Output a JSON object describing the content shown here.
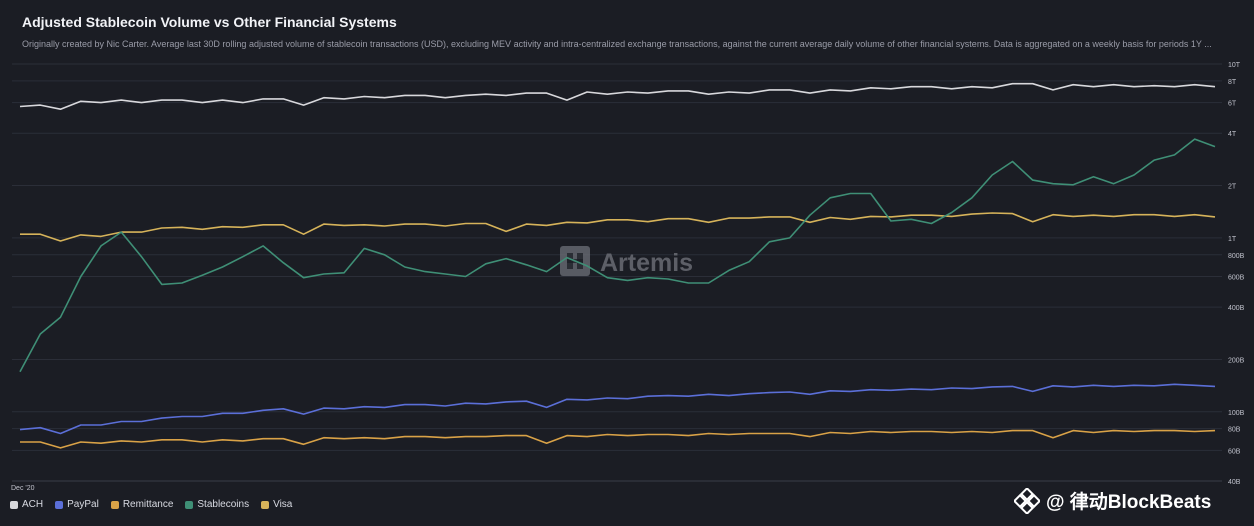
{
  "header": {
    "title": "Adjusted Stablecoin Volume vs Other Financial Systems",
    "subtitle": "Originally created by Nic Carter. Average last 30D rolling adjusted volume of stablecoin transactions (USD), excluding MEV activity and intra-centralized exchange transactions, against the current average daily volume of other financial systems. Data is aggregated on a weekly basis for periods 1Y ..."
  },
  "watermarks": {
    "artemis": "Artemis",
    "blockbeats": "@ 律动BlockBeats"
  },
  "colors": {
    "background": "#1b1d24",
    "ACH": "#d8d8dc",
    "PayPal": "#5b6fd8",
    "Remittance": "#d9a247",
    "Stablecoins": "#3f8f76",
    "Visa": "#d6b35a"
  },
  "chart_data": {
    "type": "line",
    "title": "Adjusted Stablecoin Volume vs Other Financial Systems",
    "x_start_label": "Dec '20",
    "y_scale": "log",
    "ylim": [
      40000000000,
      10000000000000
    ],
    "y_ticks": [
      {
        "value": 10000000000000,
        "label": "10T"
      },
      {
        "value": 8000000000000,
        "label": "8T"
      },
      {
        "value": 6000000000000,
        "label": "6T"
      },
      {
        "value": 4000000000000,
        "label": "4T"
      },
      {
        "value": 2000000000000,
        "label": "2T"
      },
      {
        "value": 1000000000000,
        "label": "1T"
      },
      {
        "value": 800000000000,
        "label": "800B"
      },
      {
        "value": 600000000000,
        "label": "600B"
      },
      {
        "value": 400000000000,
        "label": "400B"
      },
      {
        "value": 200000000000,
        "label": "200B"
      },
      {
        "value": 100000000000,
        "label": "100B"
      },
      {
        "value": 80000000000,
        "label": "80B"
      },
      {
        "value": 60000000000,
        "label": "60B"
      },
      {
        "value": 40000000000,
        "label": "40B"
      }
    ],
    "grid": true,
    "legend_position": "bottom-left",
    "series": [
      {
        "name": "ACH",
        "color": "#d8d8dc",
        "values_t": [
          5.7,
          5.8,
          5.5,
          6.1,
          6.0,
          6.2,
          6.0,
          6.2,
          6.2,
          6.0,
          6.2,
          6.0,
          6.3,
          6.3,
          5.8,
          6.4,
          6.3,
          6.5,
          6.4,
          6.6,
          6.6,
          6.4,
          6.6,
          6.7,
          6.6,
          6.8,
          6.8,
          6.2,
          6.9,
          6.7,
          6.9,
          6.8,
          7.0,
          7.0,
          6.7,
          6.9,
          6.8,
          7.1,
          7.1,
          6.8,
          7.1,
          7.0,
          7.3,
          7.2,
          7.4,
          7.4,
          7.2,
          7.4,
          7.3,
          7.7,
          7.7,
          7.1,
          7.6,
          7.4,
          7.6,
          7.4,
          7.5,
          7.4,
          7.6,
          7.4
        ]
      },
      {
        "name": "PayPal",
        "color": "#5b6fd8",
        "values_b": [
          79,
          81,
          75,
          84,
          84,
          88,
          88,
          92,
          94,
          94,
          98,
          98,
          102,
          104,
          97,
          105,
          104,
          107,
          106,
          110,
          110,
          108,
          112,
          111,
          114,
          115,
          106,
          118,
          117,
          120,
          119,
          123,
          124,
          123,
          126,
          124,
          127,
          129,
          130,
          126,
          132,
          131,
          134,
          133,
          135,
          134,
          137,
          136,
          139,
          140,
          131,
          141,
          139,
          142,
          140,
          142,
          141,
          144,
          142,
          140
        ]
      },
      {
        "name": "Remittance",
        "color": "#d9a247",
        "values_b": [
          67,
          67,
          62,
          67,
          66,
          68,
          67,
          69,
          69,
          67,
          69,
          68,
          70,
          70,
          65,
          71,
          70,
          71,
          70,
          72,
          72,
          71,
          72,
          72,
          73,
          73,
          66,
          73,
          72,
          74,
          73,
          74,
          74,
          73,
          75,
          74,
          75,
          75,
          75,
          72,
          76,
          75,
          77,
          76,
          77,
          77,
          76,
          77,
          76,
          78,
          78,
          71,
          78,
          76,
          78,
          77,
          78,
          78,
          77,
          78
        ]
      },
      {
        "name": "Stablecoins",
        "color": "#3f8f76",
        "values_b": [
          170,
          280,
          350,
          600,
          900,
          1080,
          780,
          540,
          550,
          610,
          680,
          780,
          900,
          720,
          590,
          620,
          630,
          870,
          800,
          680,
          640,
          620,
          600,
          710,
          760,
          700,
          640,
          770,
          690,
          590,
          570,
          590,
          580,
          550,
          550,
          650,
          730,
          950,
          1000,
          1350,
          1700,
          1800,
          1800,
          1250,
          1280,
          1210,
          1400,
          1700,
          2300,
          2750,
          2150,
          2050,
          2020,
          2250,
          2050,
          2300,
          2800,
          3000,
          3700,
          3350
        ]
      },
      {
        "name": "Visa",
        "color": "#d6b35a",
        "values_t": [
          1.05,
          1.05,
          0.96,
          1.04,
          1.02,
          1.08,
          1.08,
          1.14,
          1.15,
          1.12,
          1.16,
          1.15,
          1.19,
          1.19,
          1.05,
          1.2,
          1.18,
          1.19,
          1.17,
          1.2,
          1.2,
          1.17,
          1.21,
          1.21,
          1.09,
          1.2,
          1.18,
          1.23,
          1.22,
          1.27,
          1.27,
          1.24,
          1.29,
          1.29,
          1.23,
          1.3,
          1.3,
          1.32,
          1.32,
          1.23,
          1.31,
          1.28,
          1.33,
          1.32,
          1.35,
          1.35,
          1.33,
          1.37,
          1.39,
          1.38,
          1.24,
          1.36,
          1.33,
          1.35,
          1.33,
          1.36,
          1.36,
          1.33,
          1.36,
          1.32
        ]
      }
    ]
  }
}
